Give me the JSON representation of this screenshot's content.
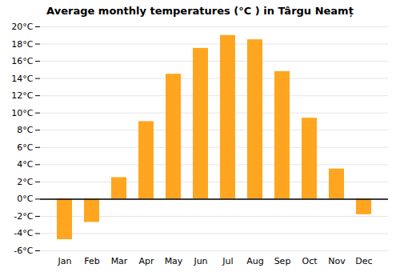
{
  "chart_data": {
    "type": "bar",
    "title": "Average monthly temperatures (°C ) in Târgu Neamț",
    "categories": [
      "Jan",
      "Feb",
      "Mar",
      "Apr",
      "May",
      "Jun",
      "Jul",
      "Aug",
      "Sep",
      "Oct",
      "Nov",
      "Dec"
    ],
    "values": [
      -4.7,
      -2.7,
      2.5,
      9.0,
      14.5,
      17.5,
      19.0,
      18.5,
      14.8,
      9.4,
      3.5,
      -1.8
    ],
    "color": "#FFA520",
    "ylim": [
      -6,
      20
    ],
    "yticks": [
      {
        "value": -6,
        "label": "-6°C"
      },
      {
        "value": -4,
        "label": "-4°C"
      },
      {
        "value": -2,
        "label": "-2°C"
      },
      {
        "value": 0,
        "label": "0°C"
      },
      {
        "value": 2,
        "label": "2°C"
      },
      {
        "value": 4,
        "label": "4°C"
      },
      {
        "value": 6,
        "label": "6°C"
      },
      {
        "value": 8,
        "label": "8°C"
      },
      {
        "value": 10,
        "label": "10°C"
      },
      {
        "value": 12,
        "label": "12°C"
      },
      {
        "value": 14,
        "label": "14°C"
      },
      {
        "value": 16,
        "label": "16°C"
      },
      {
        "value": 18,
        "label": "18°C"
      },
      {
        "value": 20,
        "label": "20°C"
      }
    ],
    "grid": true
  }
}
